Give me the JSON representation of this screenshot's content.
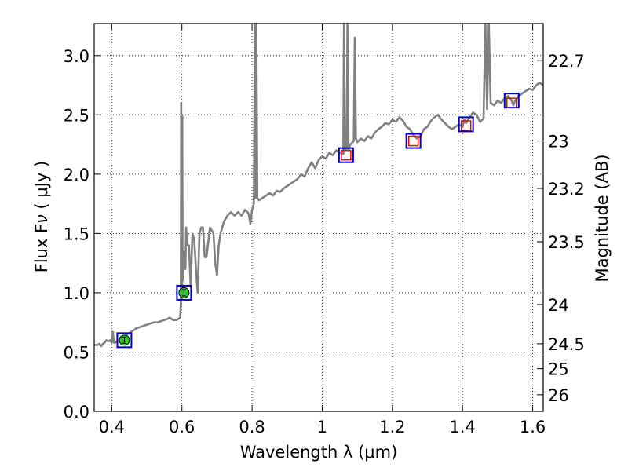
{
  "chart_data": {
    "type": "line",
    "xlabel": "Wavelength λ (μm)",
    "ylabel": "Flux F_ν (μJy)",
    "ylabel_right": "Magnitude (AB)",
    "xlim": [
      0.35,
      1.63
    ],
    "ylim": [
      0.0,
      3.27
    ],
    "grid": true,
    "x_ticks": [
      {
        "v": 0.4,
        "label": "0.4"
      },
      {
        "v": 0.6,
        "label": "0.6"
      },
      {
        "v": 0.8,
        "label": "0.8"
      },
      {
        "v": 1.0,
        "label": "1"
      },
      {
        "v": 1.2,
        "label": "1.2"
      },
      {
        "v": 1.4,
        "label": "1.4"
      },
      {
        "v": 1.6,
        "label": "1.6"
      }
    ],
    "y_ticks": [
      {
        "v": 0.0,
        "label": "0.0"
      },
      {
        "v": 0.5,
        "label": "0.5"
      },
      {
        "v": 1.0,
        "label": "1.0"
      },
      {
        "v": 1.5,
        "label": "1.5"
      },
      {
        "v": 2.0,
        "label": "2.0"
      },
      {
        "v": 2.5,
        "label": "2.5"
      },
      {
        "v": 3.0,
        "label": "3.0"
      }
    ],
    "y2_ticks": [
      {
        "flux": 2.96,
        "label": "22.7"
      },
      {
        "flux": 2.28,
        "label": "23"
      },
      {
        "flux": 1.88,
        "label": "23.2"
      },
      {
        "flux": 1.43,
        "label": "23.5"
      },
      {
        "flux": 0.9,
        "label": "24"
      },
      {
        "flux": 0.57,
        "label": "24.5"
      },
      {
        "flux": 0.36,
        "label": "25"
      },
      {
        "flux": 0.14,
        "label": "26"
      }
    ],
    "series": [
      {
        "color": "#808080",
        "points": [
          [
            0.35,
            0.56
          ],
          [
            0.36,
            0.56
          ],
          [
            0.365,
            0.57
          ],
          [
            0.37,
            0.55
          ],
          [
            0.375,
            0.57
          ],
          [
            0.38,
            0.58
          ],
          [
            0.385,
            0.6
          ],
          [
            0.39,
            0.59
          ],
          [
            0.395,
            0.6
          ],
          [
            0.4,
            0.58
          ],
          [
            0.403,
            0.67
          ],
          [
            0.406,
            0.58
          ],
          [
            0.41,
            0.58
          ],
          [
            0.415,
            0.59
          ],
          [
            0.42,
            0.6
          ],
          [
            0.425,
            0.6
          ],
          [
            0.43,
            0.62
          ],
          [
            0.44,
            0.64
          ],
          [
            0.45,
            0.66
          ],
          [
            0.46,
            0.68
          ],
          [
            0.47,
            0.7
          ],
          [
            0.48,
            0.71
          ],
          [
            0.49,
            0.72
          ],
          [
            0.5,
            0.73
          ],
          [
            0.51,
            0.74
          ],
          [
            0.52,
            0.75
          ],
          [
            0.53,
            0.75
          ],
          [
            0.54,
            0.76
          ],
          [
            0.55,
            0.77
          ],
          [
            0.56,
            0.78
          ],
          [
            0.565,
            0.79
          ],
          [
            0.57,
            0.78
          ],
          [
            0.575,
            0.77
          ],
          [
            0.58,
            0.77
          ],
          [
            0.585,
            0.77
          ],
          [
            0.59,
            0.78
          ],
          [
            0.595,
            0.79
          ],
          [
            0.597,
            0.92
          ],
          [
            0.598,
            2.6
          ],
          [
            0.599,
            1.6
          ],
          [
            0.6,
            0.95
          ],
          [
            0.601,
            2.5
          ],
          [
            0.602,
            1.1
          ],
          [
            0.605,
            1.35
          ],
          [
            0.61,
            1.2
          ],
          [
            0.612,
            1.55
          ],
          [
            0.615,
            1.4
          ],
          [
            0.62,
            1.4
          ],
          [
            0.625,
            1.05
          ],
          [
            0.63,
            1.5
          ],
          [
            0.635,
            1.45
          ],
          [
            0.64,
            1.2
          ],
          [
            0.645,
            1.0
          ],
          [
            0.65,
            1.5
          ],
          [
            0.655,
            1.55
          ],
          [
            0.66,
            1.55
          ],
          [
            0.665,
            1.3
          ],
          [
            0.67,
            1.3
          ],
          [
            0.68,
            1.55
          ],
          [
            0.69,
            1.5
          ],
          [
            0.695,
            1.25
          ],
          [
            0.7,
            1.15
          ],
          [
            0.705,
            1.4
          ],
          [
            0.71,
            1.5
          ],
          [
            0.72,
            1.6
          ],
          [
            0.73,
            1.65
          ],
          [
            0.74,
            1.68
          ],
          [
            0.75,
            1.65
          ],
          [
            0.76,
            1.68
          ],
          [
            0.77,
            1.65
          ],
          [
            0.78,
            1.7
          ],
          [
            0.79,
            1.67
          ],
          [
            0.795,
            1.58
          ],
          [
            0.8,
            1.7
          ],
          [
            0.805,
            1.75
          ],
          [
            0.808,
            3.27
          ],
          [
            0.81,
            1.8
          ],
          [
            0.812,
            3.27
          ],
          [
            0.815,
            1.8
          ],
          [
            0.82,
            1.78
          ],
          [
            0.83,
            1.8
          ],
          [
            0.84,
            1.82
          ],
          [
            0.85,
            1.84
          ],
          [
            0.86,
            1.82
          ],
          [
            0.87,
            1.86
          ],
          [
            0.88,
            1.85
          ],
          [
            0.89,
            1.88
          ],
          [
            0.9,
            1.9
          ],
          [
            0.91,
            1.92
          ],
          [
            0.92,
            1.94
          ],
          [
            0.93,
            1.96
          ],
          [
            0.94,
            2.0
          ],
          [
            0.95,
            1.98
          ],
          [
            0.96,
            2.05
          ],
          [
            0.97,
            2.1
          ],
          [
            0.98,
            2.05
          ],
          [
            0.99,
            2.12
          ],
          [
            1.0,
            2.15
          ],
          [
            1.01,
            2.13
          ],
          [
            1.02,
            2.18
          ],
          [
            1.03,
            2.16
          ],
          [
            1.04,
            2.2
          ],
          [
            1.05,
            2.18
          ],
          [
            1.06,
            2.17
          ],
          [
            1.062,
            3.27
          ],
          [
            1.065,
            2.2
          ],
          [
            1.07,
            2.22
          ],
          [
            1.072,
            3.27
          ],
          [
            1.075,
            2.2
          ],
          [
            1.08,
            2.25
          ],
          [
            1.09,
            2.28
          ],
          [
            1.093,
            3.15
          ],
          [
            1.096,
            2.3
          ],
          [
            1.1,
            2.27
          ],
          [
            1.11,
            2.3
          ],
          [
            1.12,
            2.28
          ],
          [
            1.13,
            2.32
          ],
          [
            1.14,
            2.3
          ],
          [
            1.15,
            2.35
          ],
          [
            1.16,
            2.38
          ],
          [
            1.17,
            2.4
          ],
          [
            1.18,
            2.43
          ],
          [
            1.19,
            2.42
          ],
          [
            1.2,
            2.46
          ],
          [
            1.21,
            2.44
          ],
          [
            1.22,
            2.48
          ],
          [
            1.23,
            2.45
          ],
          [
            1.24,
            2.4
          ],
          [
            1.25,
            2.38
          ],
          [
            1.26,
            2.33
          ],
          [
            1.27,
            2.3
          ],
          [
            1.28,
            2.32
          ],
          [
            1.29,
            2.38
          ],
          [
            1.3,
            2.4
          ],
          [
            1.31,
            2.45
          ],
          [
            1.32,
            2.48
          ],
          [
            1.33,
            2.5
          ],
          [
            1.34,
            2.46
          ],
          [
            1.35,
            2.43
          ],
          [
            1.36,
            2.4
          ],
          [
            1.37,
            2.38
          ],
          [
            1.38,
            2.4
          ],
          [
            1.39,
            2.42
          ],
          [
            1.4,
            2.4
          ],
          [
            1.405,
            2.46
          ],
          [
            1.41,
            2.43
          ],
          [
            1.42,
            2.48
          ],
          [
            1.43,
            2.52
          ],
          [
            1.44,
            2.5
          ],
          [
            1.45,
            2.44
          ],
          [
            1.46,
            2.47
          ],
          [
            1.465,
            3.27
          ],
          [
            1.47,
            2.55
          ],
          [
            1.475,
            3.27
          ],
          [
            1.48,
            2.6
          ],
          [
            1.49,
            2.58
          ],
          [
            1.5,
            2.62
          ],
          [
            1.51,
            2.6
          ],
          [
            1.52,
            2.64
          ],
          [
            1.53,
            2.66
          ],
          [
            1.54,
            2.62
          ],
          [
            1.545,
            2.58
          ],
          [
            1.55,
            2.62
          ],
          [
            1.56,
            2.66
          ],
          [
            1.57,
            2.68
          ],
          [
            1.58,
            2.7
          ],
          [
            1.59,
            2.72
          ],
          [
            1.6,
            2.71
          ],
          [
            1.61,
            2.75
          ],
          [
            1.62,
            2.77
          ],
          [
            1.63,
            2.75
          ]
        ]
      }
    ],
    "photometry_green": [
      {
        "x": 0.436,
        "y": 0.6
      },
      {
        "x": 0.606,
        "y": 1.0
      }
    ],
    "photometry_red": [
      {
        "x": 1.068,
        "y": 2.16
      },
      {
        "x": 1.26,
        "y": 2.28
      },
      {
        "x": 1.41,
        "y": 2.41
      },
      {
        "x": 1.54,
        "y": 2.6
      }
    ],
    "model_boxes": [
      {
        "x": 0.436,
        "y": 0.6
      },
      {
        "x": 0.606,
        "y": 1.0
      },
      {
        "x": 1.068,
        "y": 2.16
      },
      {
        "x": 1.26,
        "y": 2.28
      },
      {
        "x": 1.41,
        "y": 2.42
      },
      {
        "x": 1.54,
        "y": 2.62
      }
    ],
    "colors": {
      "spectrum": "#808080",
      "box": "#0000cc",
      "green": "#22cc22",
      "red": "#ff0000",
      "grid": "#000000"
    }
  }
}
